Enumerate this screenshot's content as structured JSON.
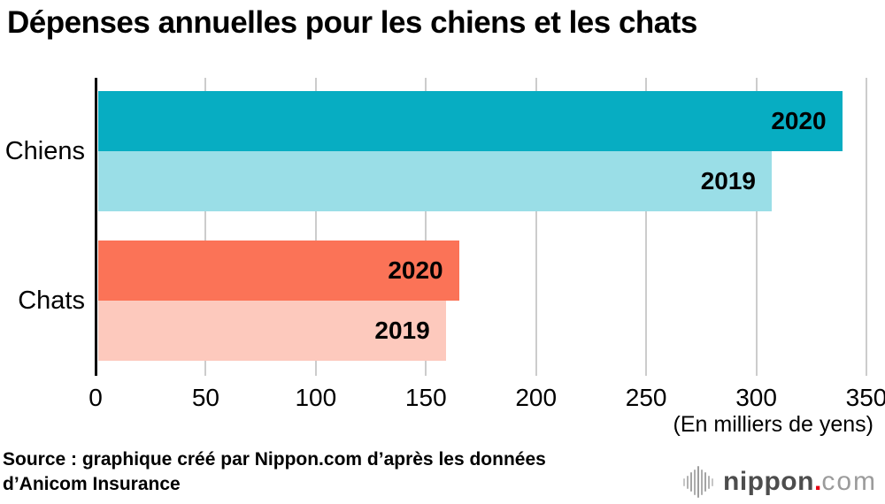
{
  "title": "Dépenses annuelles pour les chiens et les chats",
  "chart_data": {
    "type": "bar",
    "orientation": "horizontal",
    "title": "Dépenses annuelles pour les chiens et les chats",
    "categories": [
      "Chiens",
      "Chats"
    ],
    "series": [
      {
        "name": "2020",
        "values": [
          339,
          165
        ],
        "colors": [
          "#07adc2",
          "#fb7357"
        ]
      },
      {
        "name": "2019",
        "values": [
          307,
          159
        ],
        "colors": [
          "#9adee7",
          "#fdc9bd"
        ]
      }
    ],
    "values_note": "approximate values read from bar lengths, in thousands of yen",
    "xlabel": "(En milliers de yens)",
    "xlim": [
      0,
      350
    ],
    "xticks": [
      0,
      50,
      100,
      150,
      200,
      250,
      300,
      350
    ],
    "grid": true,
    "legend": "none (series year labels printed inside bars)",
    "axis_color": "#000000",
    "gridline_color": "#cccccc",
    "bar_label_color": "#000000",
    "background_color": "#ffffff"
  },
  "footer": {
    "source_line1": "Source : graphique créé par Nippon.com d’après les données",
    "source_line2": "d’Anicom Insurance"
  },
  "logo": {
    "brand": "nippon",
    "dot": ".",
    "tld": "com",
    "brand_color": "#4d4d4d",
    "tld_color": "#9b9b9b",
    "dot_color": "#e60012",
    "icon": "soundwave-bars-icon"
  }
}
